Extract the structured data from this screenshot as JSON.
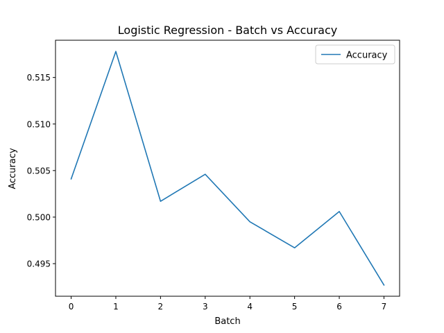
{
  "chart_data": {
    "type": "line",
    "title": "Logistic Regression - Batch vs Accuracy",
    "xlabel": "Batch",
    "ylabel": "Accuracy",
    "x": [
      0,
      1,
      2,
      3,
      4,
      5,
      6,
      7
    ],
    "series": [
      {
        "name": "Accuracy",
        "color": "#1f77b4",
        "values": [
          0.5041,
          0.5178,
          0.5017,
          0.5046,
          0.4995,
          0.4967,
          0.5006,
          0.4927
        ]
      }
    ],
    "xlim": [
      -0.35,
      7.35
    ],
    "ylim": [
      0.4915,
      0.519
    ],
    "xticks": [
      0,
      1,
      2,
      3,
      4,
      5,
      6,
      7
    ],
    "xtick_labels": [
      "0",
      "1",
      "2",
      "3",
      "4",
      "5",
      "6",
      "7"
    ],
    "yticks": [
      0.495,
      0.5,
      0.505,
      0.51,
      0.515
    ],
    "ytick_labels": [
      "0.495",
      "0.500",
      "0.505",
      "0.510",
      "0.515"
    ],
    "grid": false,
    "legend": "top-right"
  }
}
